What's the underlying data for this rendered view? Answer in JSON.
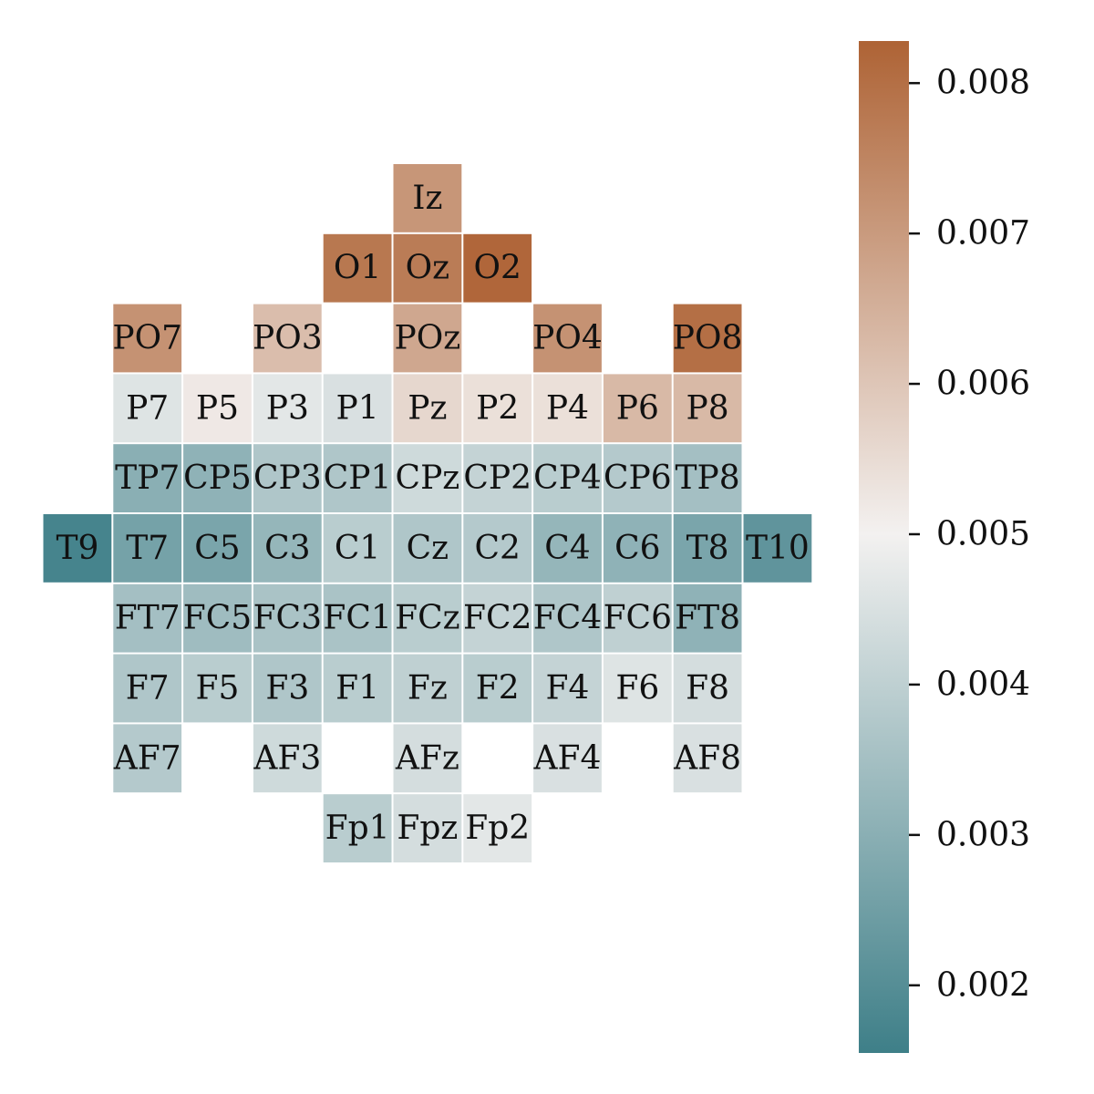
{
  "chart_data": {
    "type": "heatmap",
    "title": "",
    "colormap": {
      "low": "#3e7f88",
      "mid": "#f3f1f0",
      "high": "#ae6335"
    },
    "vmin": 0.00155,
    "vmax": 0.00828,
    "vcenter": 0.005,
    "colorbar_ticks": [
      {
        "value": 0.002,
        "label": "0.002"
      },
      {
        "value": 0.003,
        "label": "0.003"
      },
      {
        "value": 0.004,
        "label": "0.004"
      },
      {
        "value": 0.005,
        "label": "0.005"
      },
      {
        "value": 0.006,
        "label": "0.006"
      },
      {
        "value": 0.007,
        "label": "0.007"
      },
      {
        "value": 0.008,
        "label": "0.008"
      }
    ],
    "cells": [
      {
        "label": "Iz",
        "row": 0,
        "col": 5,
        "value": 0.0071
      },
      {
        "label": "O1",
        "row": 1,
        "col": 4,
        "value": 0.0078
      },
      {
        "label": "Oz",
        "row": 1,
        "col": 5,
        "value": 0.0077
      },
      {
        "label": "O2",
        "row": 1,
        "col": 6,
        "value": 0.0082
      },
      {
        "label": "PO7",
        "row": 2,
        "col": 1,
        "value": 0.0072
      },
      {
        "label": "PO3",
        "row": 2,
        "col": 3,
        "value": 0.0062
      },
      {
        "label": "POz",
        "row": 2,
        "col": 5,
        "value": 0.0067
      },
      {
        "label": "PO4",
        "row": 2,
        "col": 7,
        "value": 0.0072
      },
      {
        "label": "PO8",
        "row": 2,
        "col": 9,
        "value": 0.008
      },
      {
        "label": "P7",
        "row": 3,
        "col": 1,
        "value": 0.0046
      },
      {
        "label": "P5",
        "row": 3,
        "col": 2,
        "value": 0.0052
      },
      {
        "label": "P3",
        "row": 3,
        "col": 3,
        "value": 0.0047
      },
      {
        "label": "P1",
        "row": 3,
        "col": 4,
        "value": 0.0045
      },
      {
        "label": "Pz",
        "row": 3,
        "col": 5,
        "value": 0.0056
      },
      {
        "label": "P2",
        "row": 3,
        "col": 6,
        "value": 0.0054
      },
      {
        "label": "P4",
        "row": 3,
        "col": 7,
        "value": 0.0054
      },
      {
        "label": "P6",
        "row": 3,
        "col": 8,
        "value": 0.0063
      },
      {
        "label": "P8",
        "row": 3,
        "col": 9,
        "value": 0.0063
      },
      {
        "label": "TP7",
        "row": 4,
        "col": 1,
        "value": 0.003
      },
      {
        "label": "CP5",
        "row": 4,
        "col": 2,
        "value": 0.0031
      },
      {
        "label": "CP3",
        "row": 4,
        "col": 3,
        "value": 0.0037
      },
      {
        "label": "CP1",
        "row": 4,
        "col": 4,
        "value": 0.0037
      },
      {
        "label": "CPz",
        "row": 4,
        "col": 5,
        "value": 0.0043
      },
      {
        "label": "CP2",
        "row": 4,
        "col": 6,
        "value": 0.0041
      },
      {
        "label": "CP4",
        "row": 4,
        "col": 7,
        "value": 0.0039
      },
      {
        "label": "CP6",
        "row": 4,
        "col": 8,
        "value": 0.0038
      },
      {
        "label": "TP8",
        "row": 4,
        "col": 9,
        "value": 0.0035
      },
      {
        "label": "T9",
        "row": 5,
        "col": 0,
        "value": 0.0017
      },
      {
        "label": "T7",
        "row": 5,
        "col": 1,
        "value": 0.0026
      },
      {
        "label": "C5",
        "row": 5,
        "col": 2,
        "value": 0.0027
      },
      {
        "label": "C3",
        "row": 5,
        "col": 3,
        "value": 0.0032
      },
      {
        "label": "C1",
        "row": 5,
        "col": 4,
        "value": 0.0039
      },
      {
        "label": "Cz",
        "row": 5,
        "col": 5,
        "value": 0.0037
      },
      {
        "label": "C2",
        "row": 5,
        "col": 6,
        "value": 0.0038
      },
      {
        "label": "C4",
        "row": 5,
        "col": 7,
        "value": 0.0032
      },
      {
        "label": "C6",
        "row": 5,
        "col": 8,
        "value": 0.0031
      },
      {
        "label": "T8",
        "row": 5,
        "col": 9,
        "value": 0.0027
      },
      {
        "label": "T10",
        "row": 5,
        "col": 10,
        "value": 0.0022
      },
      {
        "label": "FT7",
        "row": 6,
        "col": 1,
        "value": 0.0035
      },
      {
        "label": "FC5",
        "row": 6,
        "col": 2,
        "value": 0.0034
      },
      {
        "label": "FC3",
        "row": 6,
        "col": 3,
        "value": 0.0036
      },
      {
        "label": "FC1",
        "row": 6,
        "col": 4,
        "value": 0.0036
      },
      {
        "label": "FCz",
        "row": 6,
        "col": 5,
        "value": 0.0039
      },
      {
        "label": "FC2",
        "row": 6,
        "col": 6,
        "value": 0.0041
      },
      {
        "label": "FC4",
        "row": 6,
        "col": 7,
        "value": 0.0037
      },
      {
        "label": "FC6",
        "row": 6,
        "col": 8,
        "value": 0.004
      },
      {
        "label": "FT8",
        "row": 6,
        "col": 9,
        "value": 0.0031
      },
      {
        "label": "F7",
        "row": 7,
        "col": 1,
        "value": 0.0037
      },
      {
        "label": "F5",
        "row": 7,
        "col": 2,
        "value": 0.0039
      },
      {
        "label": "F3",
        "row": 7,
        "col": 3,
        "value": 0.0037
      },
      {
        "label": "F1",
        "row": 7,
        "col": 4,
        "value": 0.0039
      },
      {
        "label": "Fz",
        "row": 7,
        "col": 5,
        "value": 0.004
      },
      {
        "label": "F2",
        "row": 7,
        "col": 6,
        "value": 0.0039
      },
      {
        "label": "F4",
        "row": 7,
        "col": 7,
        "value": 0.0041
      },
      {
        "label": "F6",
        "row": 7,
        "col": 8,
        "value": 0.0046
      },
      {
        "label": "F8",
        "row": 7,
        "col": 9,
        "value": 0.0044
      },
      {
        "label": "AF7",
        "row": 8,
        "col": 1,
        "value": 0.0038
      },
      {
        "label": "AF3",
        "row": 8,
        "col": 3,
        "value": 0.0043
      },
      {
        "label": "AFz",
        "row": 8,
        "col": 5,
        "value": 0.0044
      },
      {
        "label": "AF4",
        "row": 8,
        "col": 7,
        "value": 0.0045
      },
      {
        "label": "AF8",
        "row": 8,
        "col": 9,
        "value": 0.0045
      },
      {
        "label": "Fp1",
        "row": 9,
        "col": 4,
        "value": 0.0039
      },
      {
        "label": "Fpz",
        "row": 9,
        "col": 5,
        "value": 0.0044
      },
      {
        "label": "Fp2",
        "row": 9,
        "col": 6,
        "value": 0.0047
      }
    ]
  }
}
